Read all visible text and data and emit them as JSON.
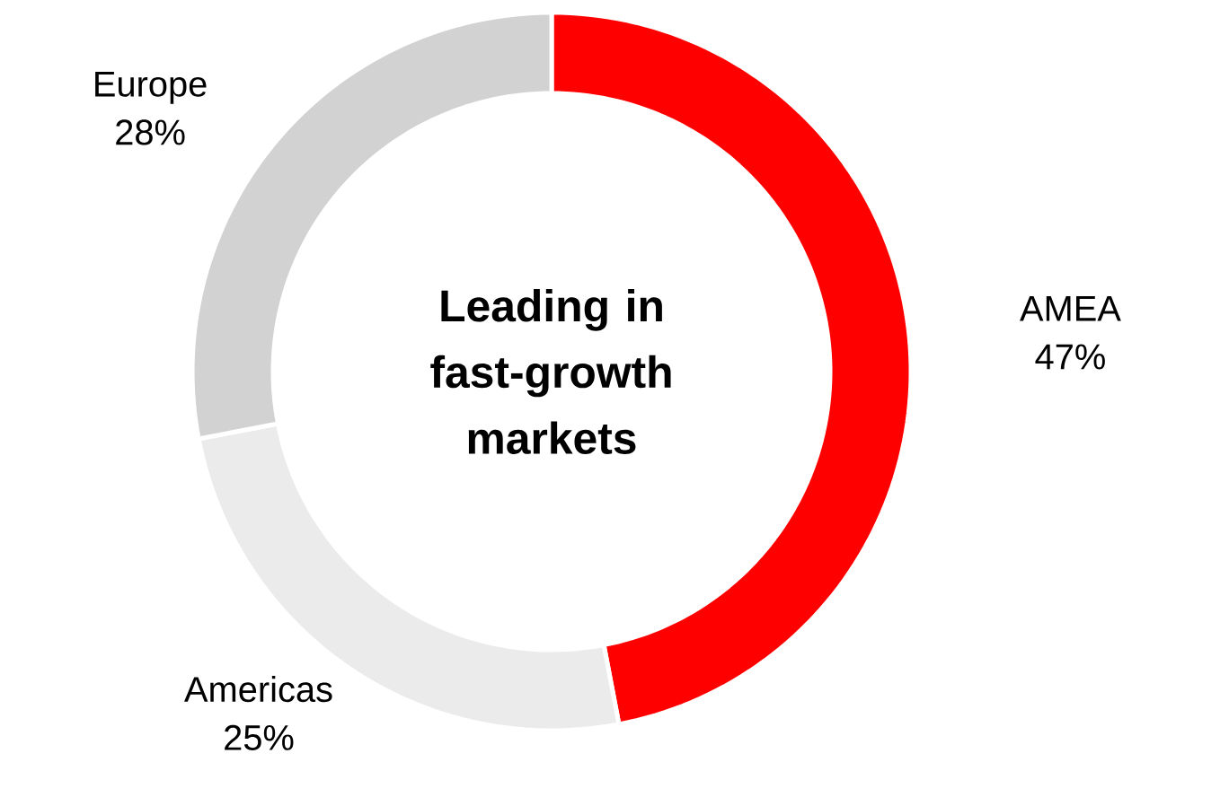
{
  "chart_data": {
    "type": "donut",
    "title": "Leading in fast-growth markets",
    "categories": [
      "AMEA",
      "Americas",
      "Europe"
    ],
    "values": [
      47,
      25,
      28
    ],
    "value_labels": [
      "47%",
      "25%",
      "28%"
    ],
    "colors": [
      "#ff0000",
      "#ebebeb",
      "#d2d2d2"
    ]
  }
}
